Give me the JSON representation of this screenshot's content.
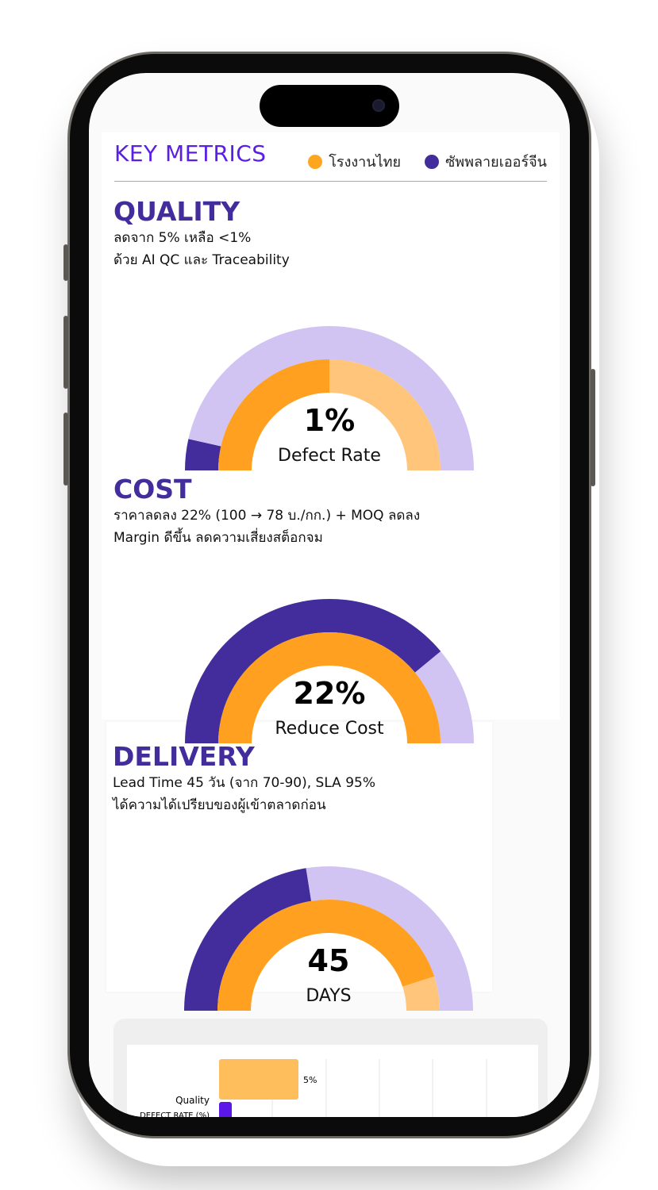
{
  "header": {
    "title": "KEY METRICS",
    "legend": [
      {
        "label": "โรงงานไทย",
        "color": "#FFA620"
      },
      {
        "label": "ซัพพลายเออร์จีน",
        "color": "#432C9B"
      }
    ]
  },
  "colors": {
    "thai": "#FFA020",
    "thai_light": "#FFC57A",
    "china": "#432C9B",
    "china_light": "#D1C4F2",
    "title": "#5A1EE6"
  },
  "sections": [
    {
      "heading": "QUALITY",
      "line1": "ลดจาก 5% เหลือ <1%",
      "line2": "ด้วย AI QC และ Traceability",
      "value": "1%",
      "label": "Defect Rate",
      "gauge": {
        "china_fraction": 0.07,
        "thai_fraction": 0.5
      }
    },
    {
      "heading": "COST",
      "line1": "ราคาลดลง 22% (100 → 78 บ./กก.) + MOQ ลดลง",
      "line2": "Margin ดีขึ้น ลดความเสี่ยงสต็อกจม",
      "value": "22%",
      "label": "Reduce Cost",
      "gauge": {
        "china_fraction": 0.78,
        "thai_fraction": 1.0
      }
    },
    {
      "heading": "DELIVERY",
      "line1": "Lead Time 45 วัน (จาก 70-90), SLA 95%",
      "line2": "ได้ความได้เปรียบของผู้เข้าตลาดก่อน",
      "value": "45",
      "label": "DAYS",
      "gauge": {
        "china_fraction": 0.45,
        "thai_fraction": 0.9
      }
    }
  ],
  "bar_chart": {
    "category": "Quality",
    "sublabel": "DEFECT RATE (%)",
    "bars": [
      {
        "series": "โรงงานไทย",
        "value": 5,
        "label": "5%",
        "color": "#FFBE5C"
      },
      {
        "series": "ซัพพลายเออร์จีน",
        "value": 0.8,
        "color": "#5B16E8"
      }
    ]
  }
}
